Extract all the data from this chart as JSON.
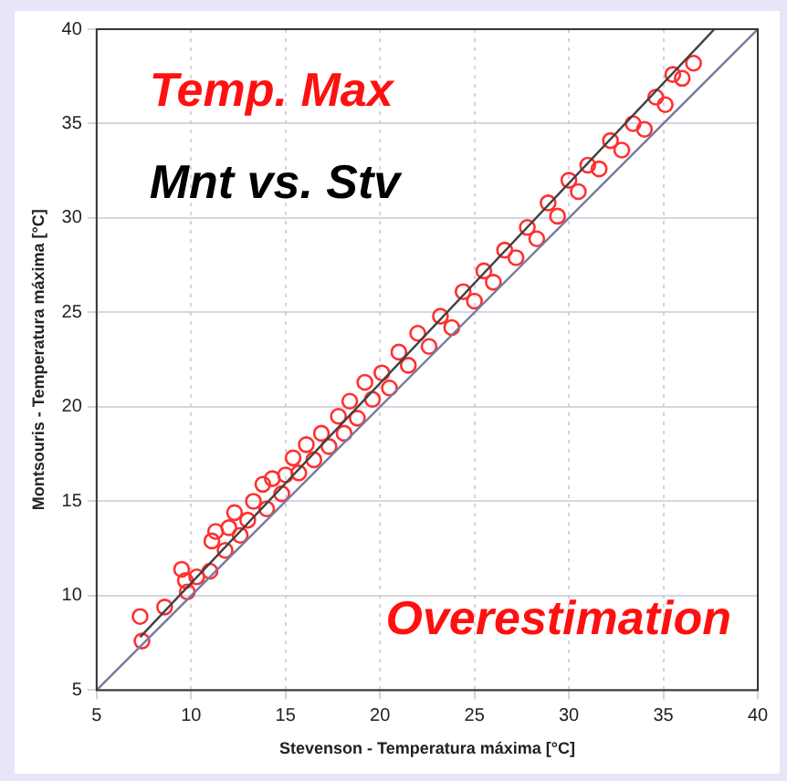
{
  "chart_data": {
    "type": "scatter",
    "xlabel": "Stevenson - Temperatura máxima [°C]",
    "ylabel": "Montsouris - Temperatura máxima [°C]",
    "annotations": [
      "Temp. Max",
      "Mnt vs. Stv",
      "Overestimation"
    ],
    "xlim": [
      5,
      40
    ],
    "ylim": [
      5,
      40
    ],
    "xticks": [
      5,
      10,
      15,
      20,
      25,
      30,
      35,
      40
    ],
    "yticks": [
      5,
      10,
      15,
      20,
      25,
      30,
      35,
      40
    ],
    "grid": true,
    "legend": false,
    "series": [
      {
        "type": "line",
        "marker": "none",
        "color": "#7878a0",
        "x": [
          5,
          40
        ],
        "values": [
          5,
          40
        ]
      },
      {
        "type": "line",
        "marker": "none",
        "color": "#404040",
        "x": [
          7.3,
          37.7
        ],
        "values": [
          7.8,
          40
        ]
      },
      {
        "marker": "circle",
        "color": "#ff3030",
        "x": [
          7.3,
          7.4,
          8.6,
          9.5,
          9.8,
          9.7,
          10.3,
          11.0,
          11.1,
          11.3,
          11.8,
          12.0,
          12.3,
          12.6,
          13.0,
          13.3,
          13.8,
          14.0,
          14.3,
          14.8,
          15.0,
          15.4,
          15.7,
          16.1,
          16.5,
          16.9,
          17.3,
          17.8,
          18.1,
          18.4,
          18.8,
          19.2,
          19.6,
          20.1,
          20.5,
          21.0,
          21.5,
          22.0,
          22.6,
          23.2,
          23.8,
          24.4,
          25.0,
          25.5,
          26.0,
          26.6,
          27.2,
          27.8,
          28.3,
          28.9,
          29.4,
          30.0,
          30.5,
          31.0,
          31.6,
          32.2,
          32.8,
          33.4,
          34.0,
          34.6,
          35.1,
          35.5,
          36.0,
          36.6
        ],
        "values": [
          8.9,
          7.6,
          9.4,
          11.4,
          10.2,
          10.8,
          11.0,
          11.3,
          12.9,
          13.4,
          12.4,
          13.6,
          14.4,
          13.2,
          14.0,
          15.0,
          15.9,
          14.6,
          16.2,
          15.4,
          16.4,
          17.3,
          16.5,
          18.0,
          17.2,
          18.6,
          17.9,
          19.5,
          18.6,
          20.3,
          19.4,
          21.3,
          20.4,
          21.8,
          21.0,
          22.9,
          22.2,
          23.9,
          23.2,
          24.8,
          24.2,
          26.1,
          25.6,
          27.2,
          26.6,
          28.3,
          27.9,
          29.5,
          28.9,
          30.8,
          30.1,
          32.0,
          31.4,
          32.8,
          32.6,
          34.1,
          33.6,
          35.0,
          34.7,
          36.4,
          36.0,
          37.6,
          37.4,
          38.2
        ]
      }
    ]
  }
}
